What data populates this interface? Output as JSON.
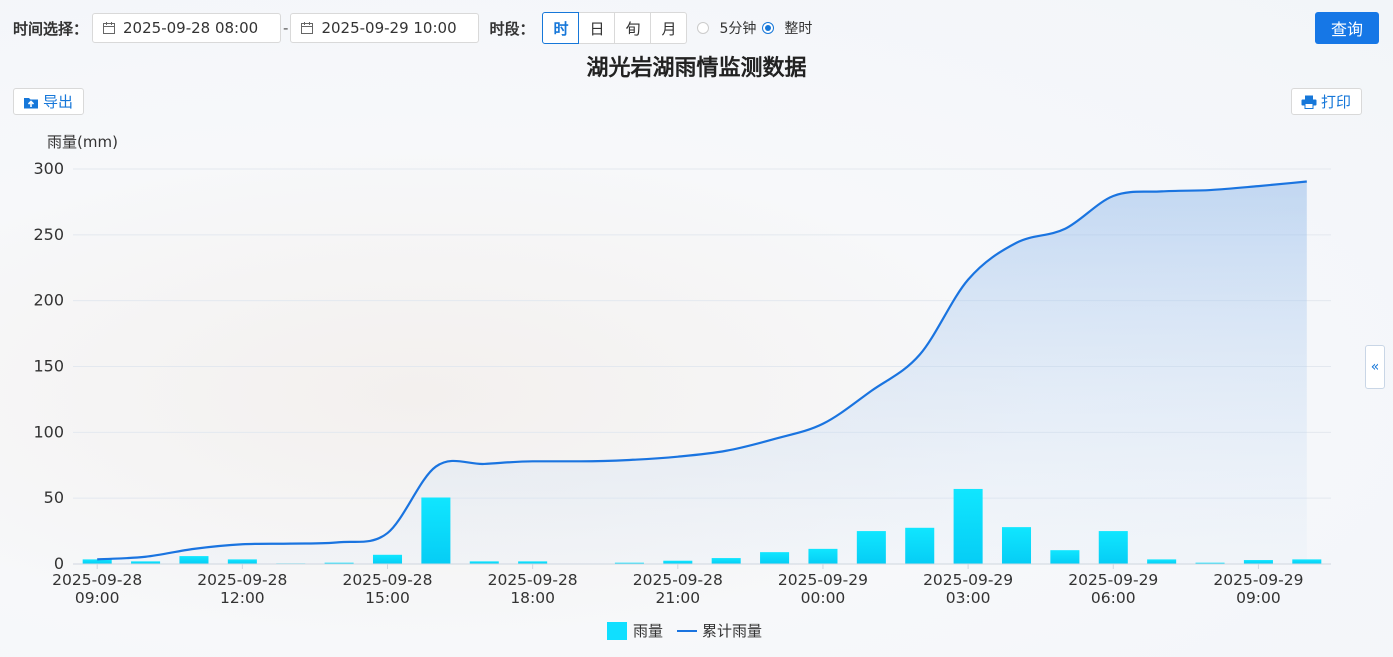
{
  "toolbar": {
    "time_label": "时间选择：",
    "start": "2025-09-28 08:00",
    "separator": "-",
    "end": "2025-09-29 10:00",
    "period_label": "时段：",
    "periods": [
      "时",
      "日",
      "旬",
      "月"
    ],
    "active_period": "时",
    "radio_5min": "5分钟",
    "radio_hour": "整时",
    "query": "查询"
  },
  "title": "湖光岩湖雨情监测数据",
  "buttons": {
    "export": "导出",
    "print": "打印"
  },
  "side_tab": "«",
  "colors": {
    "bar": "#10dfff",
    "line": "#1a74e0",
    "accent": "#1677e6"
  },
  "chart_data": {
    "type": "bar",
    "ylabel": "雨量(mm)",
    "ylim": [
      0,
      300
    ],
    "yticks": [
      0,
      50,
      100,
      150,
      200,
      250,
      300
    ],
    "x": [
      "2025-09-28 09:00",
      "2025-09-28 10:00",
      "2025-09-28 11:00",
      "2025-09-28 12:00",
      "2025-09-28 13:00",
      "2025-09-28 14:00",
      "2025-09-28 15:00",
      "2025-09-28 16:00",
      "2025-09-28 17:00",
      "2025-09-28 18:00",
      "2025-09-28 19:00",
      "2025-09-28 20:00",
      "2025-09-28 21:00",
      "2025-09-28 22:00",
      "2025-09-28 23:00",
      "2025-09-29 00:00",
      "2025-09-29 01:00",
      "2025-09-29 02:00",
      "2025-09-29 03:00",
      "2025-09-29 04:00",
      "2025-09-29 05:00",
      "2025-09-29 06:00",
      "2025-09-29 07:00",
      "2025-09-29 08:00",
      "2025-09-29 09:00",
      "2025-09-29 10:00"
    ],
    "xtick_labels": [
      [
        "2025-09-28",
        "09:00"
      ],
      [
        "2025-09-28",
        "12:00"
      ],
      [
        "2025-09-28",
        "15:00"
      ],
      [
        "2025-09-28",
        "18:00"
      ],
      [
        "2025-09-28",
        "21:00"
      ],
      [
        "2025-09-29",
        "00:00"
      ],
      [
        "2025-09-29",
        "03:00"
      ],
      [
        "2025-09-29",
        "06:00"
      ],
      [
        "2025-09-29",
        "09:00"
      ]
    ],
    "series": [
      {
        "name": "雨量",
        "type": "bar",
        "values": [
          3.5,
          2,
          6,
          3.5,
          0.5,
          1,
          7,
          50.5,
          2,
          2,
          0,
          1,
          2.5,
          4.5,
          9,
          11.5,
          25,
          27.5,
          57,
          28,
          10.5,
          25,
          3.5,
          1,
          3,
          3.5
        ]
      },
      {
        "name": "累计雨量",
        "type": "line",
        "area": true,
        "values": [
          3.5,
          5.5,
          11.5,
          15,
          15.5,
          16.5,
          23.5,
          74,
          76,
          78,
          78,
          79,
          81.5,
          86,
          95,
          106.5,
          131.5,
          159,
          216,
          244,
          254.5,
          279.5,
          283,
          284,
          287,
          290.5
        ]
      }
    ],
    "legend_position": "bottom-center",
    "grid": true
  }
}
